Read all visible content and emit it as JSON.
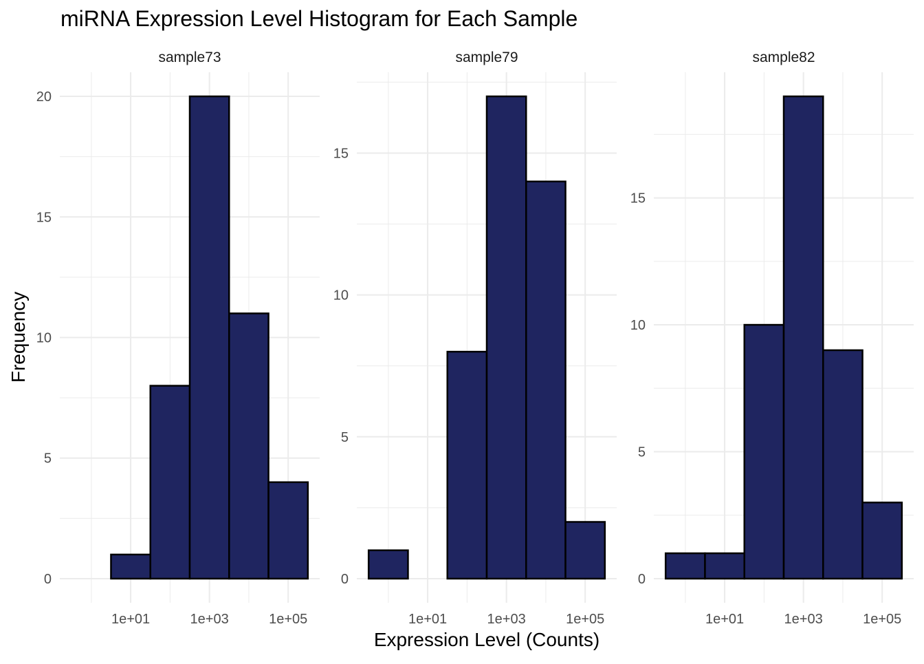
{
  "chart_data": {
    "type": "bar",
    "title": "miRNA Expression Level Histogram for Each Sample",
    "xlabel": "Expression Level (Counts)",
    "ylabel": "Frequency",
    "x_scale": "log10",
    "bin_centers_log10": [
      0,
      1,
      2,
      3,
      4,
      5
    ],
    "x_tick_labels": [
      "1e+01",
      "1e+03",
      "1e+05"
    ],
    "x_tick_values_log10": [
      1,
      3,
      5
    ],
    "colors": {
      "fill": "#1F2560",
      "outline": "#000000",
      "grid": "#EBEBEB",
      "text": "#4D4D4D"
    },
    "facets": [
      {
        "name": "sample73",
        "values": [
          0,
          1,
          8,
          20,
          11,
          4
        ],
        "y_ticks": [
          0,
          5,
          10,
          15,
          20
        ],
        "ylim": [
          -1,
          21
        ]
      },
      {
        "name": "sample79",
        "values": [
          1,
          0,
          8,
          17,
          14,
          2
        ],
        "y_ticks": [
          0,
          5,
          10,
          15
        ],
        "ylim": [
          -0.85,
          17.85
        ]
      },
      {
        "name": "sample82",
        "values": [
          1,
          1,
          10,
          19,
          9,
          3
        ],
        "y_ticks": [
          0,
          5,
          10,
          15
        ],
        "ylim": [
          -0.95,
          19.95
        ]
      }
    ]
  }
}
